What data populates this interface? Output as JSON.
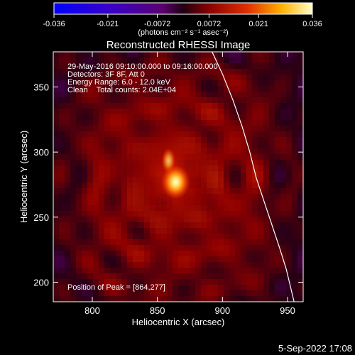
{
  "chart_data": {
    "type": "heatmap",
    "title": "Reconstructed RHESSI Image",
    "xlabel": "Heliocentric X (arcsec)",
    "ylabel": "Heliocentric Y (arcsec)",
    "xlim": [
      770,
      962
    ],
    "ylim": [
      185,
      377
    ],
    "x_ticks": [
      800,
      850,
      900,
      950
    ],
    "y_ticks": [
      200,
      250,
      300,
      350
    ],
    "colorbar": {
      "range": [
        -0.036,
        0.036
      ],
      "ticks": [
        "-0.036",
        "-0.021",
        "-0.0072",
        "0.0072",
        "0.021",
        "0.036"
      ],
      "label": "(photons cm⁻² s⁻¹ asec⁻²)"
    },
    "annotations": [
      "29-May-2016 09:10:00.000 to 09:16:00.000",
      "Detectors: 3F 8F, Att 0",
      "Energy Range: 6.0 - 12.0 keV",
      "Clean    Total counts: 2.04E+04"
    ],
    "peak_label": "Position of Peak = [864,277]",
    "peak": {
      "x": 864,
      "y": 277
    },
    "limb_curve": [
      [
        892,
        377
      ],
      [
        900,
        360
      ],
      [
        908,
        340
      ],
      [
        915,
        320
      ],
      [
        921,
        300
      ],
      [
        926,
        280
      ],
      [
        932,
        262
      ],
      [
        938,
        244
      ],
      [
        944,
        226
      ],
      [
        949,
        210
      ],
      [
        955,
        185
      ]
    ],
    "colors": {
      "background": "#000000",
      "text": "#ffffff",
      "limb": "#ffffff"
    }
  },
  "footer": {
    "date": "5-Sep-2022 17:08"
  }
}
